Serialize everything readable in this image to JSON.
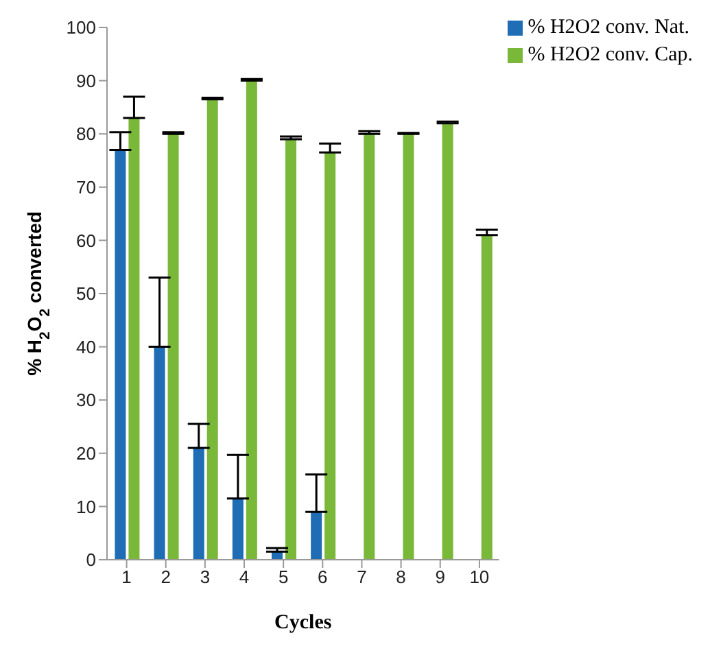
{
  "chart_data": {
    "type": "bar",
    "xlabel": "Cycles",
    "ylabel": "% H$_{2}$O$_{2}$ converted",
    "categories": [
      "1",
      "2",
      "3",
      "4",
      "5",
      "6",
      "7",
      "8",
      "9",
      "10"
    ],
    "series": [
      {
        "name": "% H2O2 conv. Nat.",
        "color": "#1f6db5",
        "values": [
          77,
          40,
          21,
          11.5,
          1.5,
          9,
          null,
          null,
          null,
          null
        ],
        "errors": [
          [
            77,
            80.3
          ],
          [
            40,
            53
          ],
          [
            21,
            25.5
          ],
          [
            11.5,
            19.7
          ],
          [
            1.5,
            2.2
          ],
          [
            9,
            16
          ],
          null,
          null,
          null,
          null
        ]
      },
      {
        "name": "% H2O2 conv. Cap.",
        "color": "#7ab83a",
        "values": [
          83,
          80,
          86.5,
          90,
          79,
          76.5,
          80,
          80,
          82,
          61
        ],
        "errors": [
          [
            83,
            87
          ],
          [
            80,
            80.3
          ],
          [
            86.5,
            86.8
          ],
          [
            90,
            90.3
          ],
          [
            79,
            79.5
          ],
          [
            76.5,
            78.2
          ],
          [
            80,
            80.5
          ],
          [
            80,
            80.2
          ],
          [
            82,
            82.3
          ],
          [
            61,
            62
          ]
        ]
      }
    ],
    "ylim": [
      0,
      100
    ],
    "yticks": [
      0,
      10,
      20,
      30,
      40,
      50,
      60,
      70,
      80,
      90,
      100
    ],
    "grid": false,
    "legend": "top right"
  }
}
